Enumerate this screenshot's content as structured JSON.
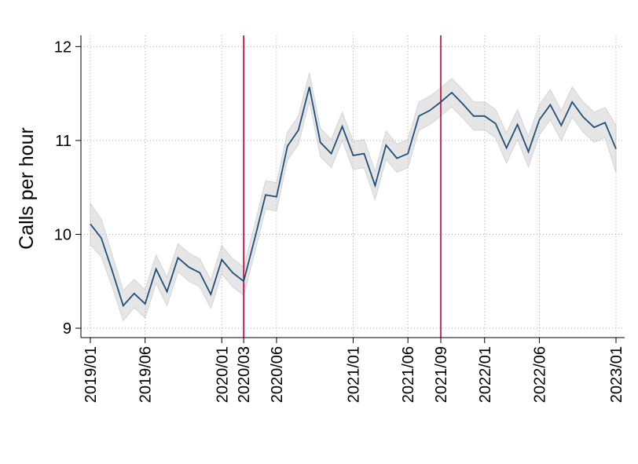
{
  "chart_data": {
    "type": "line",
    "y_label": "Calls per hour",
    "categories": [
      "2019/01",
      null,
      null,
      null,
      null,
      "2019/06",
      null,
      null,
      null,
      null,
      null,
      null,
      "2020/01",
      null,
      "2020/03",
      null,
      null,
      "2020/06",
      null,
      null,
      null,
      null,
      null,
      null,
      "2021/01",
      null,
      null,
      null,
      null,
      "2021/06",
      null,
      null,
      "2021/09",
      null,
      null,
      null,
      "2022/01",
      null,
      null,
      null,
      null,
      "2022/06",
      null,
      null,
      null,
      null,
      null,
      null,
      "2023/01"
    ],
    "series": [
      {
        "color": "#1f4e79",
        "values": [
          10.11,
          9.96,
          9.61,
          9.24,
          9.37,
          9.26,
          9.63,
          9.39,
          9.75,
          9.65,
          9.59,
          9.36,
          9.73,
          9.59,
          9.5,
          9.95,
          10.42,
          10.4,
          10.94,
          11.11,
          11.57,
          10.98,
          10.86,
          11.15,
          10.84,
          10.86,
          10.52,
          10.95,
          10.81,
          10.86,
          11.26,
          11.32,
          11.41,
          11.51,
          11.39,
          11.26,
          11.26,
          11.18,
          10.92,
          11.17,
          10.88,
          11.22,
          11.38,
          11.16,
          11.41,
          11.25,
          11.14,
          11.19,
          10.91
        ]
      }
    ],
    "band": {
      "color": "#e6e6e6",
      "lower": [
        9.89,
        9.76,
        9.44,
        9.08,
        9.22,
        9.11,
        9.48,
        9.24,
        9.6,
        9.5,
        9.44,
        9.21,
        9.58,
        9.44,
        9.35,
        9.8,
        10.27,
        10.25,
        10.79,
        10.96,
        11.42,
        10.83,
        10.71,
        11.0,
        10.69,
        10.71,
        10.37,
        10.8,
        10.66,
        10.71,
        11.11,
        11.17,
        11.26,
        11.36,
        11.24,
        11.11,
        11.11,
        11.03,
        10.76,
        11.01,
        10.72,
        11.06,
        11.22,
        11.0,
        11.25,
        11.09,
        10.98,
        11.03,
        10.66
      ],
      "upper": [
        10.33,
        10.16,
        9.78,
        9.4,
        9.52,
        9.41,
        9.78,
        9.54,
        9.9,
        9.8,
        9.74,
        9.51,
        9.88,
        9.74,
        9.65,
        10.1,
        10.57,
        10.55,
        11.09,
        11.26,
        11.72,
        11.13,
        11.01,
        11.3,
        10.99,
        11.01,
        10.67,
        11.1,
        10.96,
        11.01,
        11.41,
        11.47,
        11.56,
        11.66,
        11.54,
        11.41,
        11.41,
        11.33,
        11.08,
        11.33,
        11.04,
        11.38,
        11.54,
        11.32,
        11.57,
        11.41,
        11.3,
        11.35,
        11.16
      ]
    },
    "vlines": [
      "2020/03",
      "2021/09"
    ],
    "vline_color": "#c0003c",
    "ylim": [
      8.9,
      12.12
    ],
    "yticks": [
      9,
      10,
      11,
      12
    ],
    "grid": true
  }
}
